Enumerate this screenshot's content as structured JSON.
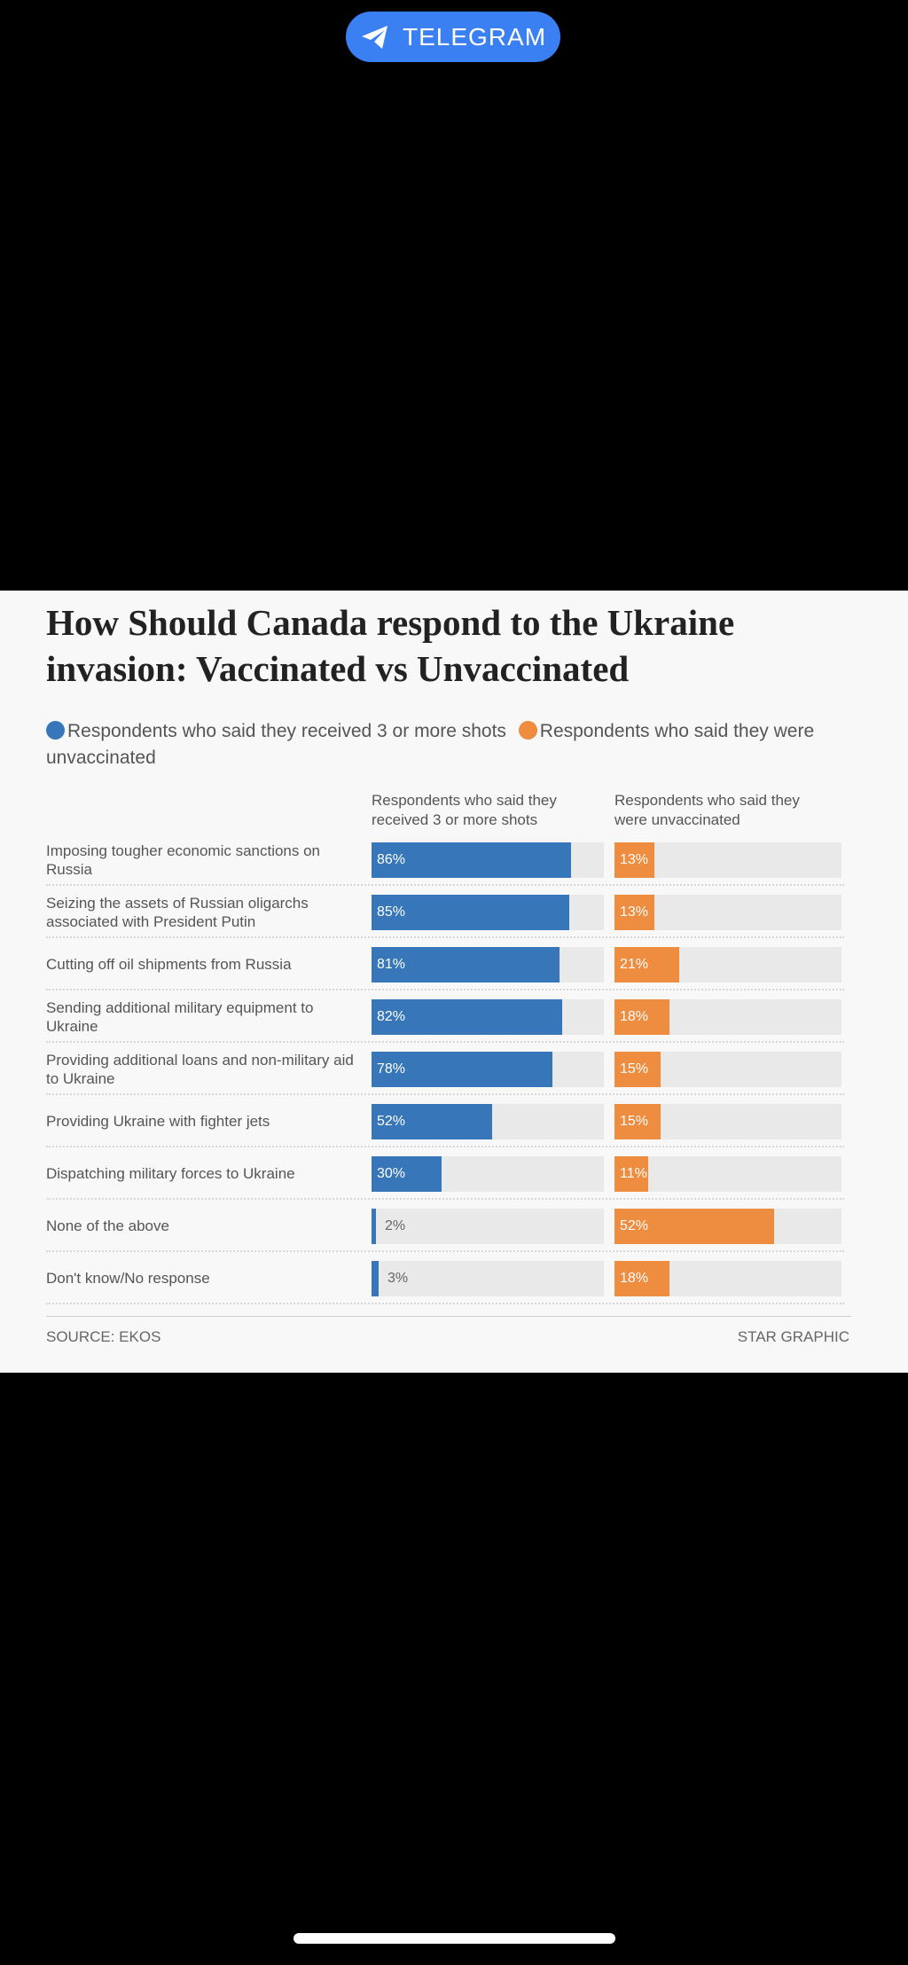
{
  "header": {
    "app_label": "TELEGRAM"
  },
  "chart_data": {
    "type": "bar",
    "title": "How Should Canada respond to the Ukraine invasion: Vaccinated vs Unvaccinated",
    "legend": [
      "Respondents who said they received 3 or more shots",
      "Respondents who said they were unvaccinated"
    ],
    "column_headers": [
      "Respondents who said they received 3 or more shots",
      "Respondents who said they were unvaccinated"
    ],
    "categories": [
      "Imposing tougher economic sanctions on Russia",
      "Seizing the assets of Russian oligarchs associated with President Putin",
      "Cutting off oil shipments from Russia",
      "Sending additional military equipment to Ukraine",
      "Providing additional loans and non-military aid to Ukraine",
      "Providing Ukraine with fighter jets",
      "Dispatching military forces to Ukraine",
      "None of the above",
      "Don't know/No response"
    ],
    "series": [
      {
        "name": "Respondents who said they received 3 or more shots",
        "values": [
          86,
          85,
          81,
          82,
          78,
          52,
          30,
          2,
          3
        ],
        "labels": [
          "86%",
          "85%",
          "81%",
          "82%",
          "78%",
          "52%",
          "30%",
          "2%",
          "3%"
        ],
        "color": "#3776b8"
      },
      {
        "name": "Respondents who said they were unvaccinated",
        "values": [
          13,
          13,
          21,
          18,
          15,
          15,
          11,
          52,
          18
        ],
        "labels": [
          "13%",
          "13%",
          "21%",
          "18%",
          "15%",
          "15%",
          "11%",
          "52%",
          "18%"
        ],
        "color": "#ee8d3f"
      }
    ],
    "xlim": [
      0,
      100
    ],
    "legend_position": "top",
    "source": "SOURCE: EKOS",
    "credit": "STAR GRAPHIC"
  }
}
